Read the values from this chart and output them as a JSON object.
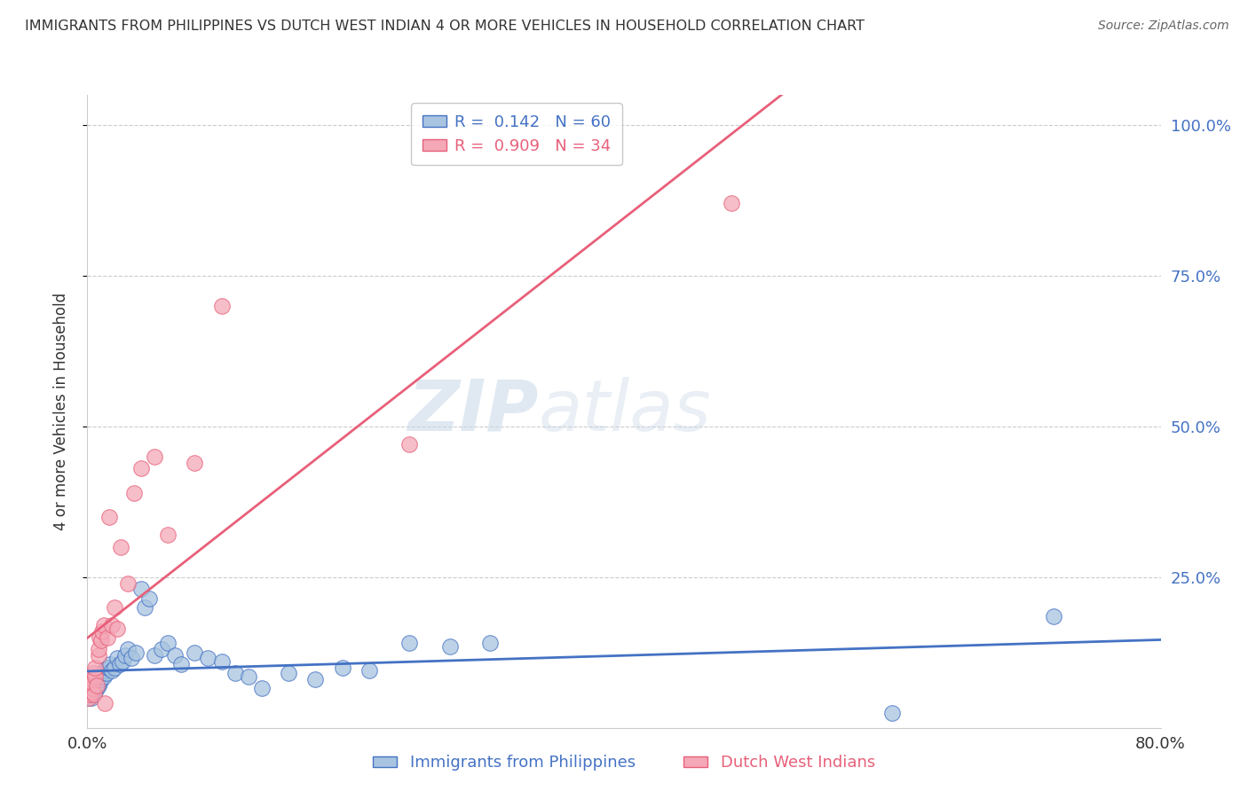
{
  "title": "IMMIGRANTS FROM PHILIPPINES VS DUTCH WEST INDIAN 4 OR MORE VEHICLES IN HOUSEHOLD CORRELATION CHART",
  "source": "Source: ZipAtlas.com",
  "ylabel": "4 or more Vehicles in Household",
  "xlim": [
    0.0,
    0.8
  ],
  "ylim": [
    0.0,
    1.05
  ],
  "blue_R": 0.142,
  "blue_N": 60,
  "pink_R": 0.909,
  "pink_N": 34,
  "blue_color": "#a8c4e0",
  "pink_color": "#f4a8b8",
  "blue_line_color": "#4472c4",
  "pink_line_color": "#e8607a",
  "legend_label_blue": "Immigrants from Philippines",
  "legend_label_pink": "Dutch West Indians",
  "watermark_zip": "ZIP",
  "watermark_atlas": "atlas",
  "background_color": "#ffffff",
  "grid_color": "#cccccc",
  "title_color": "#333333",
  "source_color": "#666666",
  "axis_label_color": "#333333",
  "tick_label_color": "#333333",
  "right_tick_color": "#4472c4",
  "blue_x": [
    0.001,
    0.002,
    0.002,
    0.003,
    0.003,
    0.003,
    0.004,
    0.004,
    0.004,
    0.005,
    0.005,
    0.005,
    0.006,
    0.006,
    0.007,
    0.007,
    0.008,
    0.008,
    0.009,
    0.01,
    0.01,
    0.011,
    0.012,
    0.013,
    0.014,
    0.015,
    0.016,
    0.017,
    0.018,
    0.02,
    0.022,
    0.024,
    0.026,
    0.028,
    0.03,
    0.033,
    0.036,
    0.04,
    0.043,
    0.046,
    0.05,
    0.055,
    0.06,
    0.065,
    0.07,
    0.08,
    0.09,
    0.1,
    0.11,
    0.12,
    0.13,
    0.15,
    0.17,
    0.19,
    0.21,
    0.24,
    0.27,
    0.3,
    0.6,
    0.72
  ],
  "blue_y": [
    0.05,
    0.055,
    0.06,
    0.05,
    0.06,
    0.065,
    0.055,
    0.065,
    0.07,
    0.06,
    0.065,
    0.07,
    0.06,
    0.07,
    0.065,
    0.075,
    0.07,
    0.08,
    0.075,
    0.08,
    0.085,
    0.09,
    0.085,
    0.095,
    0.09,
    0.1,
    0.1,
    0.105,
    0.095,
    0.1,
    0.115,
    0.105,
    0.11,
    0.12,
    0.13,
    0.115,
    0.125,
    0.23,
    0.2,
    0.215,
    0.12,
    0.13,
    0.14,
    0.12,
    0.105,
    0.125,
    0.115,
    0.11,
    0.09,
    0.085,
    0.065,
    0.09,
    0.08,
    0.1,
    0.095,
    0.14,
    0.135,
    0.14,
    0.025,
    0.185
  ],
  "pink_x": [
    0.001,
    0.002,
    0.002,
    0.003,
    0.003,
    0.004,
    0.004,
    0.005,
    0.005,
    0.006,
    0.006,
    0.007,
    0.008,
    0.008,
    0.009,
    0.01,
    0.011,
    0.012,
    0.013,
    0.015,
    0.016,
    0.018,
    0.02,
    0.022,
    0.025,
    0.03,
    0.035,
    0.04,
    0.05,
    0.06,
    0.08,
    0.1,
    0.24,
    0.48
  ],
  "pink_y": [
    0.05,
    0.055,
    0.07,
    0.06,
    0.08,
    0.065,
    0.075,
    0.055,
    0.09,
    0.085,
    0.1,
    0.07,
    0.12,
    0.13,
    0.15,
    0.145,
    0.16,
    0.17,
    0.04,
    0.15,
    0.35,
    0.17,
    0.2,
    0.165,
    0.3,
    0.24,
    0.39,
    0.43,
    0.45,
    0.32,
    0.44,
    0.7,
    0.47,
    0.87
  ]
}
